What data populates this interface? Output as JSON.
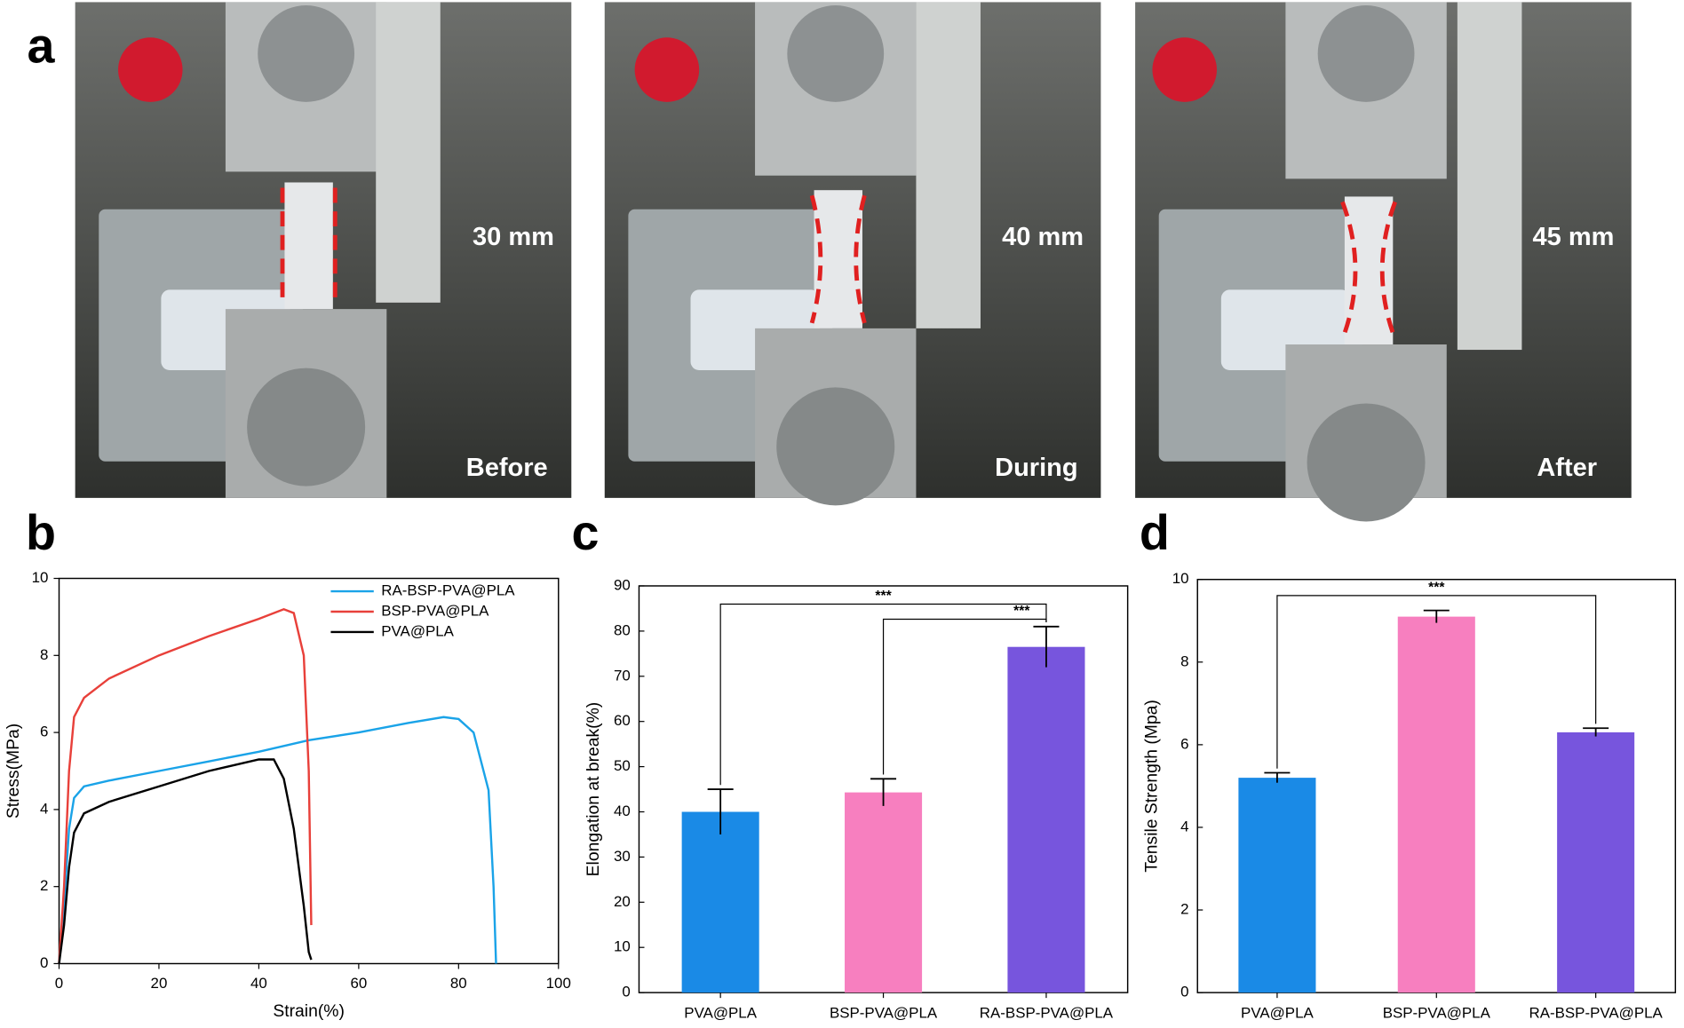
{
  "panel_labels": [
    "a",
    "b",
    "c",
    "d"
  ],
  "photos": [
    {
      "length": "30 mm",
      "stage": "Before"
    },
    {
      "length": "40 mm",
      "stage": "During"
    },
    {
      "length": "45 mm",
      "stage": "After"
    }
  ],
  "chart_data": [
    {
      "type": "line",
      "xlabel": "Strain(%)",
      "ylabel": "Stress(MPa)",
      "xlim": [
        0,
        100
      ],
      "ylim": [
        0,
        10
      ],
      "xticks": [
        0,
        20,
        40,
        60,
        80,
        100
      ],
      "yticks": [
        0,
        2,
        4,
        6,
        8,
        10
      ],
      "legend": "upper right",
      "series": [
        {
          "name": "RA-BSP-PVA@PLA",
          "color": "#1aa3e8",
          "x": [
            0,
            1,
            2,
            3,
            5,
            10,
            20,
            30,
            40,
            50,
            60,
            70,
            77,
            80,
            83,
            86,
            87,
            87.5
          ],
          "values": [
            0,
            1.5,
            3.5,
            4.3,
            4.6,
            4.75,
            5.0,
            5.25,
            5.5,
            5.8,
            6.0,
            6.25,
            6.4,
            6.35,
            6.0,
            4.5,
            2.0,
            0
          ]
        },
        {
          "name": "BSP-PVA@PLA",
          "color": "#e8403a",
          "x": [
            0,
            1,
            2,
            3,
            5,
            10,
            20,
            30,
            40,
            45,
            47,
            49,
            50,
            50.5
          ],
          "values": [
            0,
            2,
            5,
            6.4,
            6.9,
            7.4,
            8.0,
            8.5,
            8.95,
            9.2,
            9.1,
            8.0,
            5,
            1.0
          ]
        },
        {
          "name": "PVA@PLA",
          "color": "#000000",
          "x": [
            0,
            1,
            2,
            3,
            5,
            10,
            20,
            30,
            40,
            43,
            45,
            47,
            49,
            50,
            50.5
          ],
          "values": [
            0,
            1,
            2.5,
            3.4,
            3.9,
            4.2,
            4.6,
            5.0,
            5.3,
            5.3,
            4.8,
            3.5,
            1.5,
            0.3,
            0.1
          ]
        }
      ]
    },
    {
      "type": "bar",
      "ylabel": "Elongation at break(%)",
      "ylim": [
        0,
        90
      ],
      "yticks": [
        0,
        10,
        20,
        30,
        40,
        50,
        60,
        70,
        80,
        90
      ],
      "categories": [
        "PVA@PLA",
        "BSP-PVA@PLA",
        "RA-BSP-PVA@PLA"
      ],
      "values": [
        40,
        44.3,
        76.5
      ],
      "errors": [
        5,
        3,
        4.5
      ],
      "colors": [
        "#1a8ae6",
        "#f77fbf",
        "#7755dd"
      ],
      "annotations": [
        "***",
        "***"
      ]
    },
    {
      "type": "bar",
      "ylabel": "Tensile Strength (Mpa)",
      "ylim": [
        0,
        10
      ],
      "yticks": [
        0,
        2,
        4,
        6,
        8,
        10
      ],
      "categories": [
        "PVA@PLA",
        "BSP-PVA@PLA",
        "RA-BSP-PVA@PLA"
      ],
      "values": [
        5.2,
        9.1,
        6.3
      ],
      "errors": [
        0.12,
        0.15,
        0.1
      ],
      "colors": [
        "#1a8ae6",
        "#f77fbf",
        "#7755dd"
      ],
      "annotations": [
        "***"
      ]
    }
  ]
}
